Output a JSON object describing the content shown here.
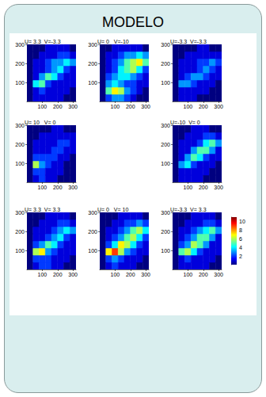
{
  "header": {
    "title": "MODELO"
  },
  "colorbar": {
    "range": [
      0,
      11
    ],
    "ticks": [
      2,
      4,
      6,
      8,
      10
    ]
  },
  "chart_data": [
    {
      "type": "heatmap",
      "title": "U= 3.3  V=-3.3",
      "xlim": [
        0,
        320
      ],
      "ylim": [
        0,
        300
      ],
      "xticks": [
        100,
        200,
        300
      ],
      "yticks": [
        100,
        200,
        300
      ],
      "x_edges": [
        0,
        40,
        80,
        120,
        160,
        200,
        240,
        280,
        320
      ],
      "y_edges": [
        0,
        37.5,
        75,
        112.5,
        150,
        187.5,
        225,
        262.5,
        300
      ],
      "cells": [
        [
          0,
          1,
          1,
          1,
          1,
          1,
          0,
          0
        ],
        [
          0,
          1,
          2,
          1,
          1,
          1,
          1,
          0
        ],
        [
          0,
          4,
          5,
          2,
          1,
          1,
          1,
          1
        ],
        [
          0,
          1,
          3,
          5,
          4,
          2,
          1,
          1
        ],
        [
          0,
          1,
          1,
          2,
          3,
          4,
          2,
          1
        ],
        [
          0,
          1,
          1,
          2,
          3,
          3,
          4,
          3
        ],
        [
          0,
          0,
          1,
          1,
          1,
          2,
          2,
          1
        ],
        [
          0,
          0,
          0,
          1,
          1,
          1,
          1,
          0
        ]
      ]
    },
    {
      "type": "heatmap",
      "title": "U= 0   V=-10",
      "xlim": [
        0,
        320
      ],
      "ylim": [
        0,
        300
      ],
      "xticks": [
        100,
        200,
        300
      ],
      "yticks": [
        100,
        200,
        300
      ],
      "x_edges": [
        0,
        40,
        80,
        120,
        160,
        200,
        240,
        280,
        320
      ],
      "y_edges": [
        0,
        37.5,
        75,
        112.5,
        150,
        187.5,
        225,
        262.5,
        300
      ],
      "cells": [
        [
          0,
          2,
          3,
          3,
          2,
          1,
          0,
          0
        ],
        [
          0,
          5,
          7,
          6,
          3,
          2,
          1,
          0
        ],
        [
          0,
          3,
          4,
          3,
          2,
          2,
          1,
          1
        ],
        [
          0,
          2,
          3,
          4,
          4,
          3,
          2,
          1
        ],
        [
          0,
          1,
          2,
          4,
          5,
          6,
          4,
          2
        ],
        [
          0,
          1,
          2,
          3,
          5,
          6,
          7,
          5
        ],
        [
          0,
          1,
          1,
          2,
          3,
          3,
          4,
          3
        ],
        [
          0,
          0,
          1,
          1,
          1,
          1,
          1,
          0
        ]
      ]
    },
    {
      "type": "heatmap",
      "title": "U=-3.3  V=-3.3",
      "xlim": [
        0,
        320
      ],
      "ylim": [
        0,
        300
      ],
      "xticks": [
        100,
        200,
        300
      ],
      "yticks": [
        100,
        200,
        300
      ],
      "x_edges": [
        0,
        40,
        80,
        120,
        160,
        200,
        240,
        280,
        320
      ],
      "y_edges": [
        0,
        37.5,
        75,
        112.5,
        150,
        187.5,
        225,
        262.5,
        300
      ],
      "cells": [
        [
          0,
          1,
          1,
          1,
          0,
          0,
          0,
          0
        ],
        [
          0,
          1,
          1,
          1,
          1,
          1,
          0,
          0
        ],
        [
          0,
          3,
          3,
          2,
          1,
          1,
          1,
          0
        ],
        [
          0,
          1,
          2,
          3,
          3,
          2,
          1,
          1
        ],
        [
          0,
          1,
          1,
          1,
          2,
          3,
          2,
          1
        ],
        [
          0,
          1,
          1,
          1,
          2,
          2,
          3,
          2
        ],
        [
          0,
          0,
          1,
          1,
          1,
          1,
          1,
          1
        ],
        [
          0,
          0,
          0,
          0,
          1,
          1,
          0,
          0
        ]
      ]
    },
    {
      "type": "heatmap",
      "title": "U= 10   V= 0",
      "xlim": [
        0,
        320
      ],
      "ylim": [
        0,
        300
      ],
      "xticks": [
        100,
        200,
        300
      ],
      "yticks": [
        100,
        200,
        300
      ],
      "x_edges": [
        0,
        40,
        80,
        120,
        160,
        200,
        240,
        280,
        320
      ],
      "y_edges": [
        0,
        37.5,
        75,
        112.5,
        150,
        187.5,
        225,
        262.5,
        300
      ],
      "cells": [
        [
          0,
          1,
          2,
          1,
          1,
          0,
          0,
          0
        ],
        [
          0,
          2,
          2,
          1,
          1,
          1,
          0,
          0
        ],
        [
          0,
          6,
          3,
          2,
          1,
          1,
          0,
          0
        ],
        [
          0,
          2,
          2,
          2,
          2,
          1,
          1,
          0
        ],
        [
          0,
          1,
          1,
          1,
          2,
          2,
          1,
          1
        ],
        [
          0,
          1,
          1,
          1,
          1,
          2,
          2,
          1
        ],
        [
          0,
          0,
          1,
          1,
          1,
          1,
          1,
          1
        ],
        [
          0,
          0,
          0,
          0,
          1,
          1,
          0,
          0
        ]
      ]
    },
    {
      "type": "heatmap",
      "title": "U=-10  V= 0",
      "xlim": [
        0,
        320
      ],
      "ylim": [
        0,
        300
      ],
      "xticks": [
        100,
        200,
        300
      ],
      "yticks": [
        100,
        200,
        300
      ],
      "x_edges": [
        0,
        40,
        80,
        120,
        160,
        200,
        240,
        280,
        320
      ],
      "y_edges": [
        0,
        37.5,
        75,
        112.5,
        150,
        187.5,
        225,
        262.5,
        300
      ],
      "cells": [
        [
          0,
          1,
          1,
          1,
          1,
          0,
          0,
          0
        ],
        [
          0,
          1,
          1,
          1,
          1,
          1,
          0,
          0
        ],
        [
          0,
          3,
          4,
          2,
          1,
          1,
          1,
          0
        ],
        [
          0,
          1,
          3,
          5,
          4,
          2,
          1,
          1
        ],
        [
          0,
          1,
          1,
          3,
          5,
          5,
          3,
          1
        ],
        [
          0,
          1,
          1,
          1,
          2,
          4,
          5,
          3
        ],
        [
          0,
          0,
          1,
          1,
          1,
          2,
          2,
          1
        ],
        [
          0,
          0,
          0,
          1,
          1,
          1,
          0,
          0
        ]
      ]
    },
    {
      "type": "heatmap",
      "title": "U= 3.3  V= 3.3",
      "xlim": [
        0,
        320
      ],
      "ylim": [
        0,
        300
      ],
      "xticks": [
        100,
        200,
        300
      ],
      "yticks": [
        100,
        200,
        300
      ],
      "x_edges": [
        0,
        40,
        80,
        120,
        160,
        200,
        240,
        280,
        320
      ],
      "y_edges": [
        0,
        37.5,
        75,
        112.5,
        150,
        187.5,
        225,
        262.5,
        300
      ],
      "cells": [
        [
          0,
          1,
          2,
          2,
          1,
          1,
          0,
          0
        ],
        [
          0,
          2,
          2,
          2,
          1,
          1,
          1,
          0
        ],
        [
          0,
          6,
          7,
          3,
          2,
          1,
          1,
          1
        ],
        [
          0,
          2,
          3,
          5,
          4,
          2,
          1,
          1
        ],
        [
          0,
          1,
          1,
          2,
          3,
          4,
          2,
          1
        ],
        [
          0,
          1,
          1,
          1,
          2,
          3,
          4,
          3
        ],
        [
          0,
          0,
          1,
          1,
          1,
          2,
          2,
          1
        ],
        [
          0,
          0,
          0,
          1,
          1,
          1,
          1,
          0
        ]
      ]
    },
    {
      "type": "heatmap",
      "title": "U= 0   V= 10",
      "xlim": [
        0,
        320
      ],
      "ylim": [
        0,
        300
      ],
      "xticks": [
        100,
        200,
        300
      ],
      "yticks": [
        100,
        200,
        300
      ],
      "x_edges": [
        0,
        40,
        80,
        120,
        160,
        200,
        240,
        280,
        320
      ],
      "y_edges": [
        0,
        37.5,
        75,
        112.5,
        150,
        187.5,
        225,
        262.5,
        300
      ],
      "cells": [
        [
          0,
          1,
          2,
          1,
          1,
          1,
          0,
          0
        ],
        [
          0,
          2,
          3,
          2,
          1,
          1,
          1,
          0
        ],
        [
          0,
          7,
          9,
          6,
          3,
          2,
          1,
          1
        ],
        [
          0,
          2,
          4,
          7,
          6,
          4,
          2,
          1
        ],
        [
          0,
          1,
          2,
          3,
          5,
          6,
          4,
          2
        ],
        [
          0,
          1,
          1,
          2,
          3,
          5,
          6,
          4
        ],
        [
          0,
          0,
          1,
          1,
          2,
          2,
          3,
          2
        ],
        [
          0,
          0,
          0,
          1,
          1,
          1,
          1,
          0
        ]
      ]
    },
    {
      "type": "heatmap",
      "title": "U=-3.3  V= 3.3",
      "xlim": [
        0,
        320
      ],
      "ylim": [
        0,
        300
      ],
      "xticks": [
        100,
        200,
        300
      ],
      "yticks": [
        100,
        200,
        300
      ],
      "x_edges": [
        0,
        40,
        80,
        120,
        160,
        200,
        240,
        280,
        320
      ],
      "y_edges": [
        0,
        37.5,
        75,
        112.5,
        150,
        187.5,
        225,
        262.5,
        300
      ],
      "cells": [
        [
          0,
          1,
          1,
          1,
          1,
          1,
          0,
          0
        ],
        [
          0,
          1,
          2,
          1,
          1,
          1,
          1,
          0
        ],
        [
          0,
          5,
          6,
          4,
          2,
          1,
          1,
          1
        ],
        [
          0,
          2,
          3,
          6,
          5,
          3,
          1,
          1
        ],
        [
          0,
          1,
          2,
          3,
          5,
          5,
          3,
          1
        ],
        [
          0,
          1,
          1,
          2,
          3,
          4,
          5,
          3
        ],
        [
          0,
          0,
          1,
          1,
          1,
          2,
          2,
          1
        ],
        [
          0,
          0,
          0,
          1,
          1,
          1,
          1,
          0
        ]
      ]
    }
  ]
}
